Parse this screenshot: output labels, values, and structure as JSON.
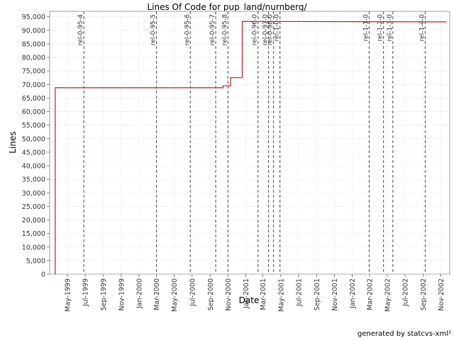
{
  "chart_data": {
    "type": "line",
    "title": "Lines Of Code for pup_land/nurnberg/",
    "xlabel": "Date",
    "ylabel": "Lines",
    "ylim": [
      0,
      97000
    ],
    "xlim": [
      "1999-03-01",
      "2002-12-01"
    ],
    "grid": true,
    "y_ticks": [
      0,
      5000,
      10000,
      15000,
      20000,
      25000,
      30000,
      35000,
      40000,
      45000,
      50000,
      55000,
      60000,
      65000,
      70000,
      75000,
      80000,
      85000,
      90000,
      95000
    ],
    "y_tick_labels": [
      "0",
      "5,000",
      "10,000",
      "15,000",
      "20,000",
      "25,000",
      "30,000",
      "35,000",
      "40,000",
      "45,000",
      "50,000",
      "55,000",
      "60,000",
      "65,000",
      "70,000",
      "75,000",
      "80,000",
      "85,000",
      "90,000",
      "95,000"
    ],
    "x_ticks": [
      {
        "date": "1999-05-01",
        "label": "May-1999"
      },
      {
        "date": "1999-07-01",
        "label": "Jul-1999"
      },
      {
        "date": "1999-09-01",
        "label": "Sep-1999"
      },
      {
        "date": "1999-11-01",
        "label": "Nov-1999"
      },
      {
        "date": "2000-01-01",
        "label": "Jan-2000"
      },
      {
        "date": "2000-03-01",
        "label": "Mar-2000"
      },
      {
        "date": "2000-05-01",
        "label": "May-2000"
      },
      {
        "date": "2000-07-01",
        "label": "Jul-2000"
      },
      {
        "date": "2000-09-01",
        "label": "Sep-2000"
      },
      {
        "date": "2000-11-01",
        "label": "Nov-2000"
      },
      {
        "date": "2001-01-01",
        "label": "Jan-2001"
      },
      {
        "date": "2001-03-01",
        "label": "Mar-2001"
      },
      {
        "date": "2001-05-01",
        "label": "May-2001"
      },
      {
        "date": "2001-07-01",
        "label": "Jul-2001"
      },
      {
        "date": "2001-09-01",
        "label": "Sep-2001"
      },
      {
        "date": "2001-11-01",
        "label": "Nov-2001"
      },
      {
        "date": "2002-01-01",
        "label": "Jan-2002"
      },
      {
        "date": "2002-03-01",
        "label": "Mar-2002"
      },
      {
        "date": "2002-05-01",
        "label": "May-2002"
      },
      {
        "date": "2002-07-01",
        "label": "Jul-2002"
      },
      {
        "date": "2002-09-01",
        "label": "Sep-2002"
      },
      {
        "date": "2002-11-01",
        "label": "Nov-2002"
      }
    ],
    "series": [
      {
        "color": "#b22222",
        "points": [
          {
            "x": "1999-03-20",
            "y": 0
          },
          {
            "x": "1999-03-20",
            "y": 68800
          },
          {
            "x": "2000-10-15",
            "y": 68800
          },
          {
            "x": "2000-10-15",
            "y": 69500
          },
          {
            "x": "2000-11-10",
            "y": 69500
          },
          {
            "x": "2000-11-10",
            "y": 72500
          },
          {
            "x": "2000-12-20",
            "y": 72500
          },
          {
            "x": "2000-12-20",
            "y": 93300
          },
          {
            "x": "2002-11-20",
            "y": 93100
          }
        ]
      }
    ],
    "markers": [
      {
        "date": "1999-06-26",
        "label": "rel-0-95-4"
      },
      {
        "date": "2000-03-01",
        "label": "rel-0-95-5"
      },
      {
        "date": "2000-06-25",
        "label": "rel-0-95-6"
      },
      {
        "date": "2000-09-20",
        "label": "rel-0-95-7"
      },
      {
        "date": "2000-11-01",
        "label": "rel-0-95-8"
      },
      {
        "date": "2001-02-12",
        "label": "rel-0-96-0"
      },
      {
        "date": "2001-03-20",
        "label": "rel-0-97-0"
      },
      {
        "date": "2001-04-06",
        "label": "rel-0-98-0"
      },
      {
        "date": "2001-04-28",
        "label": "rel-1-0-0"
      },
      {
        "date": "2002-02-28",
        "label": "rel-1-1-0"
      },
      {
        "date": "2002-04-18",
        "label": "rel-1-2-0"
      },
      {
        "date": "2002-05-20",
        "label": "rel-1-3-0"
      },
      {
        "date": "2002-09-08",
        "label": "rel-1-4-0"
      }
    ]
  },
  "footer": {
    "credit": "generated by statcvs-xml²"
  }
}
